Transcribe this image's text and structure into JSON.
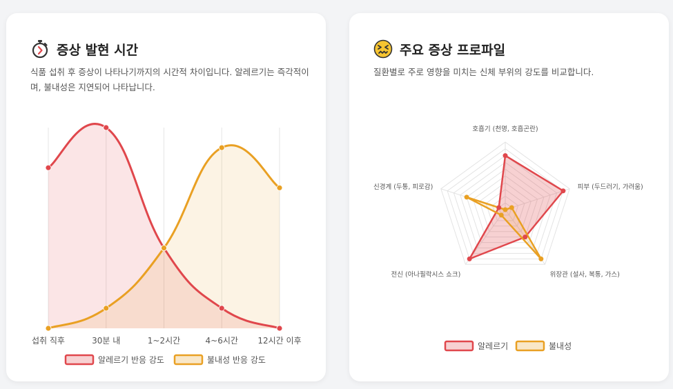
{
  "colors": {
    "allergy": "#e0474c",
    "allergy_fill": "rgba(224,71,76,0.14)",
    "allergy_box": "rgba(224,71,76,0.25)",
    "intolerance": "#e9a023",
    "intolerance_fill": "rgba(233,160,35,0.12)",
    "intolerance_box": "rgba(233,160,35,0.25)"
  },
  "left_card": {
    "icon": "stopwatch-icon",
    "title": "증상 발현 시간",
    "description": "식품 섭취 후 증상이 나타나기까지의 시간적 차이입니다. 알레르기는 즉각적이며, 불내성은 지연되어 나타납니다."
  },
  "right_card": {
    "icon": "confounded-face-icon",
    "title": "주요 증상 프로파일",
    "description": "질환별로 주로 영향을 미치는 신체 부위의 강도를 비교합니다."
  },
  "chart_data": [
    {
      "type": "line",
      "categories": [
        "섭취 직후",
        "30분 내",
        "1~2시간",
        "4~6시간",
        "12시간 이후"
      ],
      "ylim": [
        0,
        10
      ],
      "series": [
        {
          "name": "알레르기 반응 강도",
          "values": [
            8,
            10,
            4,
            1,
            0
          ]
        },
        {
          "name": "불내성 반응 강도",
          "values": [
            0,
            1,
            4,
            9,
            7
          ]
        }
      ]
    },
    {
      "type": "radar",
      "axes": [
        "호흡기 (천명, 호흡곤란)",
        "피부 (두드러기, 가려움)",
        "위장관 (설사, 복통, 가스)",
        "전신 (아나필락시스 쇼크)",
        "신경계 (두통, 피로감)"
      ],
      "rmax": 10,
      "series": [
        {
          "name": "알레르기",
          "values": [
            8,
            9,
            5,
            9,
            1
          ]
        },
        {
          "name": "불내성",
          "values": [
            0,
            1,
            9,
            1,
            6
          ]
        }
      ]
    }
  ]
}
